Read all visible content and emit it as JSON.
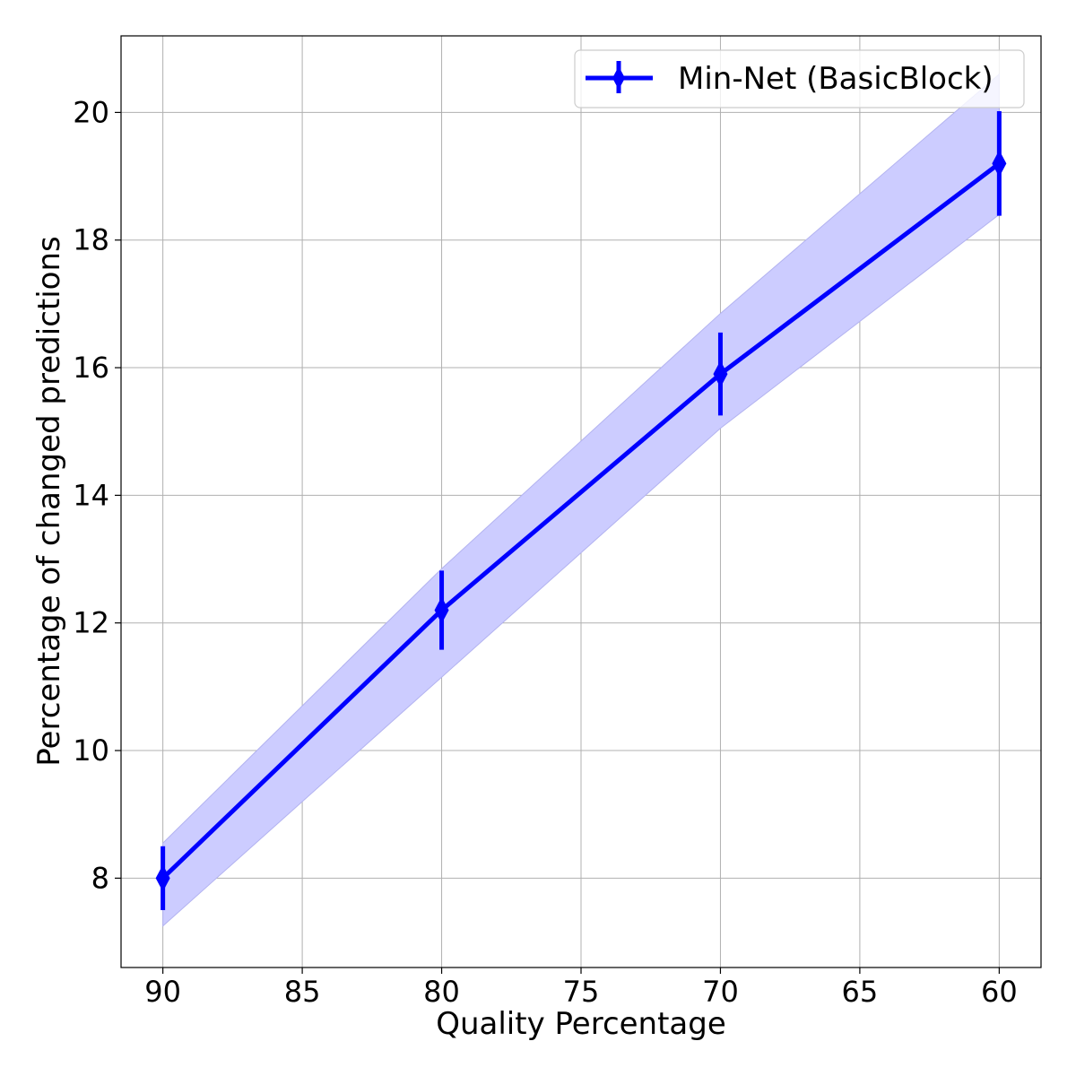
{
  "chart_data": {
    "type": "line",
    "title": "",
    "xlabel": "Quality Percentage",
    "ylabel": "Percentage of changed predictions",
    "x": [
      90,
      80,
      70,
      60
    ],
    "x_axis_inverted": true,
    "xlim": [
      91.5,
      58.5
    ],
    "ylim": [
      6.6,
      21.2
    ],
    "x_ticks": [
      90,
      85,
      80,
      75,
      70,
      65,
      60
    ],
    "y_ticks": [
      8,
      10,
      12,
      14,
      16,
      18,
      20
    ],
    "grid": true,
    "legend_position": "top-right",
    "series": [
      {
        "name": "Min-Net (BasicBlock)",
        "color": "#0000ff",
        "marker": "diamond",
        "values": [
          8.0,
          12.2,
          15.9,
          19.2
        ],
        "error": [
          0.5,
          0.62,
          0.65,
          0.82
        ],
        "band_lower": [
          7.25,
          11.15,
          15.05,
          18.4
        ],
        "band_upper": [
          8.55,
          12.85,
          16.85,
          20.6
        ],
        "band_color": "#ccccff"
      }
    ]
  }
}
